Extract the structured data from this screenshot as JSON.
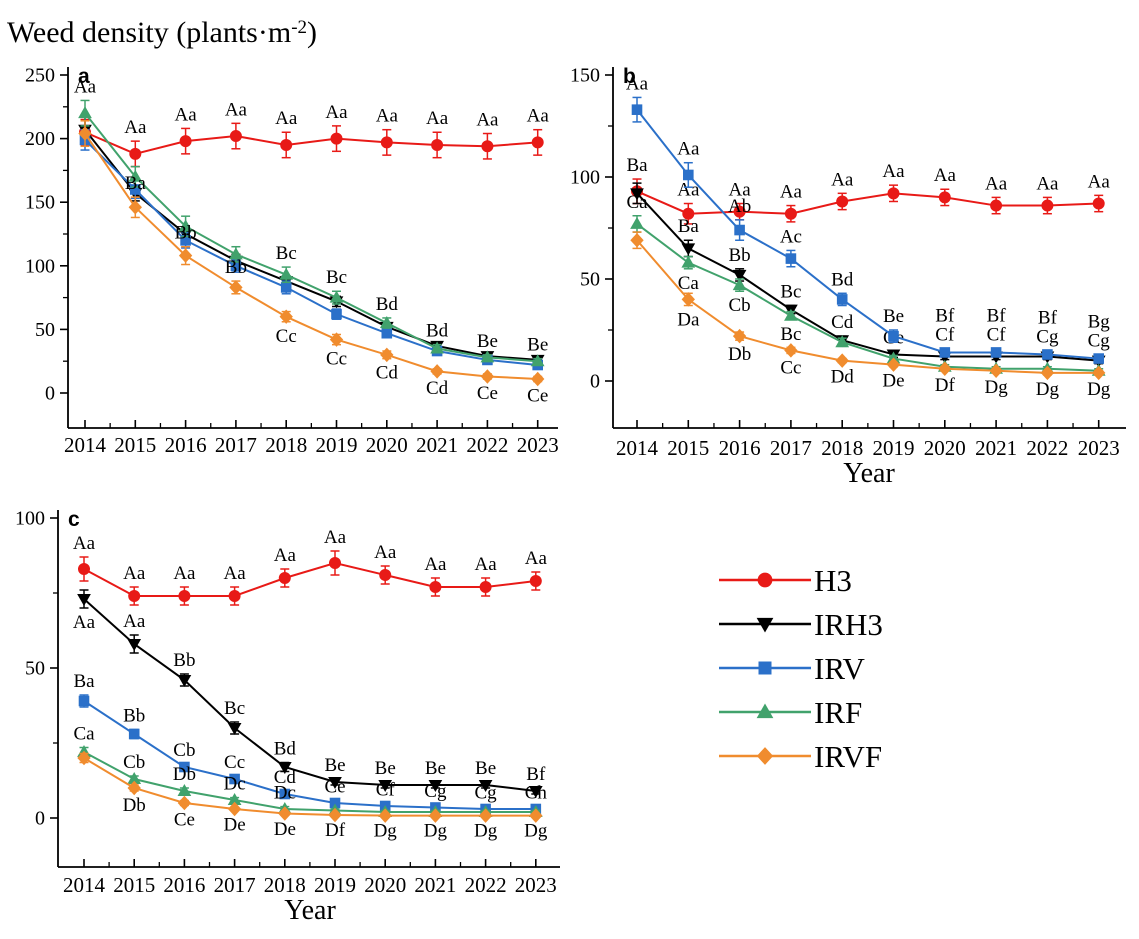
{
  "title": {
    "main": "Weed density (plants·m",
    "sup": "-2",
    "close": ")"
  },
  "years": [
    "2014",
    "2015",
    "2016",
    "2017",
    "2018",
    "2019",
    "2020",
    "2021",
    "2022",
    "2023"
  ],
  "colors": {
    "H3": "#e81a17",
    "IRH3": "#000000",
    "IRV": "#2b70c9",
    "IRF": "#41a26c",
    "IRVF": "#f08c2e"
  },
  "legend": {
    "items": [
      {
        "label": "H3",
        "color": "#e81a17",
        "marker": "circle"
      },
      {
        "label": "IRH3",
        "color": "#000000",
        "marker": "triangle-down"
      },
      {
        "label": "IRV",
        "color": "#2b70c9",
        "marker": "square"
      },
      {
        "label": "IRF",
        "color": "#41a26c",
        "marker": "triangle-up"
      },
      {
        "label": "IRVF",
        "color": "#f08c2e",
        "marker": "diamond"
      }
    ]
  },
  "chart_data": [
    {
      "type": "line",
      "panel_label": "a",
      "xlabel": "",
      "ylabel": "Weed density (plants·m-2)",
      "categories": [
        "2014",
        "2015",
        "2016",
        "2017",
        "2018",
        "2019",
        "2020",
        "2021",
        "2022",
        "2023"
      ],
      "ylim": [
        0,
        250
      ],
      "yticks": [
        0,
        50,
        100,
        150,
        200,
        250
      ],
      "series": [
        {
          "name": "H3",
          "color": "#e81a17",
          "marker": "circle",
          "values": [
            205,
            188,
            198,
            202,
            195,
            200,
            197,
            195,
            194,
            197
          ],
          "err": [
            10,
            10,
            10,
            10,
            10,
            10,
            10,
            10,
            10,
            10
          ],
          "labels_above": [
            "",
            "Aa",
            "Aa",
            "Aa",
            "Aa",
            "Aa",
            "Aa",
            "Aa",
            "Aa",
            "Aa"
          ],
          "labels_below": [
            "",
            "",
            "",
            "",
            "",
            "",
            "",
            "",
            "",
            ""
          ]
        },
        {
          "name": "IRH3",
          "color": "#000000",
          "marker": "triangle-down",
          "values": [
            207,
            157,
            125,
            104,
            88,
            72,
            52,
            37,
            29,
            26
          ],
          "err": [
            10,
            6,
            5,
            5,
            4,
            4,
            3,
            3,
            2,
            2
          ],
          "labels_above": [
            "",
            "",
            "",
            "",
            "",
            "",
            "",
            "",
            "",
            ""
          ],
          "labels_below": [
            "",
            "",
            "",
            "",
            "",
            "",
            "",
            "",
            "",
            ""
          ]
        },
        {
          "name": "IRV",
          "color": "#2b70c9",
          "marker": "square",
          "values": [
            199,
            160,
            120,
            100,
            83,
            62,
            47,
            33,
            26,
            22
          ],
          "err": [
            8,
            7,
            6,
            5,
            5,
            4,
            3,
            3,
            2,
            2
          ],
          "labels_above": [
            "",
            "",
            "",
            "",
            "",
            "",
            "",
            "",
            "",
            ""
          ],
          "labels_below": [
            "",
            "",
            "",
            "",
            "",
            "",
            "",
            "",
            "",
            ""
          ]
        },
        {
          "name": "IRF",
          "color": "#41a26c",
          "marker": "triangle-up",
          "values": [
            220,
            170,
            131,
            109,
            93,
            75,
            55,
            35,
            28,
            25
          ],
          "err": [
            10,
            8,
            8,
            6,
            6,
            5,
            4,
            3,
            2,
            2
          ],
          "labels_above": [
            "Aa",
            "",
            "",
            "",
            "Bc",
            "Bc",
            "Bd",
            "Bd",
            "Be",
            "Be"
          ],
          "labels_below": [
            "",
            "",
            "",
            "",
            "",
            "",
            "",
            "",
            "",
            ""
          ]
        },
        {
          "name": "IRVF",
          "color": "#f08c2e",
          "marker": "diamond",
          "values": [
            204,
            146,
            108,
            83,
            60,
            42,
            30,
            17,
            13,
            11
          ],
          "err": [
            10,
            8,
            7,
            5,
            4,
            4,
            3,
            2,
            2,
            2
          ],
          "labels_above": [
            "",
            "Ba",
            "Bb",
            "Bb",
            "",
            "",
            "",
            "",
            "",
            ""
          ],
          "labels_below": [
            "",
            "",
            "",
            "",
            "Cc",
            "Cc",
            "Cd",
            "Cd",
            "Ce",
            "Ce"
          ]
        }
      ]
    },
    {
      "type": "line",
      "panel_label": "b",
      "xlabel": "Year",
      "categories": [
        "2014",
        "2015",
        "2016",
        "2017",
        "2018",
        "2019",
        "2020",
        "2021",
        "2022",
        "2023"
      ],
      "ylim": [
        0,
        150
      ],
      "yticks": [
        0,
        50,
        100,
        150
      ],
      "series": [
        {
          "name": "H3",
          "color": "#e81a17",
          "marker": "circle",
          "values": [
            93,
            82,
            83,
            82,
            88,
            92,
            90,
            86,
            86,
            87
          ],
          "err": [
            6,
            5,
            4,
            4,
            4,
            4,
            4,
            4,
            4,
            4
          ],
          "labels_above": [
            "Ba",
            "Aa",
            "Aa",
            "Aa",
            "Aa",
            "Aa",
            "Aa",
            "Aa",
            "Aa",
            "Aa"
          ],
          "labels_below": [
            "",
            "",
            "",
            "",
            "",
            "",
            "",
            "",
            "",
            ""
          ]
        },
        {
          "name": "IRH3",
          "color": "#000000",
          "marker": "triangle-down",
          "values": [
            92,
            65,
            52,
            35,
            20,
            13,
            12,
            12,
            12,
            10
          ],
          "err": [
            5,
            4,
            3,
            2,
            2,
            1.5,
            1.5,
            1.5,
            1.5,
            1.5
          ],
          "labels_above": [
            "",
            "Ba",
            "Bb",
            "Bc",
            "Cd",
            "Ce",
            "",
            "",
            "",
            ""
          ],
          "labels_below": [
            "",
            "",
            "",
            "",
            "",
            "",
            "",
            "",
            "",
            ""
          ]
        },
        {
          "name": "IRV",
          "color": "#2b70c9",
          "marker": "square",
          "values": [
            133,
            101,
            74,
            60,
            40,
            22,
            14,
            14,
            13,
            11
          ],
          "err": [
            6,
            6,
            5,
            4,
            3,
            3,
            2,
            2,
            2,
            2
          ],
          "labels_above": [
            "Aa",
            "Aa",
            "Ab",
            "Ac",
            "Bd",
            "Be",
            "Bf|Cf",
            "Bf|Cf",
            "Bf|Cg",
            "Bg|Cg"
          ],
          "labels_below": [
            "",
            "",
            "",
            "",
            "",
            "",
            "",
            "",
            "",
            ""
          ]
        },
        {
          "name": "IRF",
          "color": "#41a26c",
          "marker": "triangle-up",
          "values": [
            77,
            58,
            47,
            32,
            19,
            11,
            7,
            6,
            6,
            5
          ],
          "err": [
            4,
            3,
            3,
            2,
            2,
            1.5,
            1,
            1,
            1,
            1
          ],
          "labels_above": [
            "Ca",
            "",
            "",
            "",
            "",
            "",
            "",
            "",
            "",
            ""
          ],
          "labels_below": [
            "",
            "Ca",
            "Cb",
            "Bc",
            "",
            "",
            "",
            "",
            "",
            ""
          ]
        },
        {
          "name": "IRVF",
          "color": "#f08c2e",
          "marker": "diamond",
          "values": [
            69,
            40,
            22,
            15,
            10,
            8,
            6,
            5,
            4,
            4
          ],
          "err": [
            4,
            3,
            2,
            1.5,
            1,
            1,
            1,
            1,
            1,
            1
          ],
          "labels_above": [
            "",
            "",
            "",
            "",
            "",
            "",
            "",
            "",
            "",
            ""
          ],
          "labels_below": [
            "",
            "Da",
            "Db",
            "Cc",
            "Dd",
            "De",
            "Df",
            "Dg",
            "Dg",
            "Dg"
          ]
        }
      ]
    },
    {
      "type": "line",
      "panel_label": "c",
      "xlabel": "Year",
      "categories": [
        "2014",
        "2015",
        "2016",
        "2017",
        "2018",
        "2019",
        "2020",
        "2021",
        "2022",
        "2023"
      ],
      "ylim": [
        0,
        100
      ],
      "yticks": [
        0,
        50,
        100
      ],
      "series": [
        {
          "name": "H3",
          "color": "#e81a17",
          "marker": "circle",
          "values": [
            83,
            74,
            74,
            74,
            80,
            85,
            81,
            77,
            77,
            79
          ],
          "err": [
            4,
            3,
            3,
            3,
            3,
            4,
            3,
            3,
            3,
            3
          ],
          "labels_above": [
            "Aa",
            "Aa",
            "Aa",
            "Aa",
            "Aa",
            "Aa",
            "Aa",
            "Aa",
            "Aa",
            "Aa"
          ],
          "labels_below": [
            "",
            "",
            "",
            "",
            "",
            "",
            "",
            "",
            "",
            ""
          ]
        },
        {
          "name": "IRH3",
          "color": "#000000",
          "marker": "triangle-down",
          "values": [
            73,
            58,
            46,
            30,
            17,
            12,
            11,
            11,
            11,
            9
          ],
          "err": [
            3,
            3,
            2,
            2,
            1.5,
            1,
            1,
            1,
            1,
            1
          ],
          "labels_above": [
            "",
            "Aa",
            "Bb",
            "Bc",
            "Bd",
            "Be",
            "Be",
            "Be",
            "Be",
            "Bf"
          ],
          "labels_below": [
            "Aa",
            "",
            "",
            "",
            "",
            "",
            "",
            "",
            "",
            ""
          ]
        },
        {
          "name": "IRV",
          "color": "#2b70c9",
          "marker": "square",
          "values": [
            39,
            28,
            17,
            13,
            8,
            5,
            4,
            3.5,
            3,
            3
          ],
          "err": [
            2,
            1.5,
            1,
            1,
            1,
            0.8,
            0.8,
            0.8,
            0.8,
            0.8
          ],
          "labels_above": [
            "Ba",
            "Bb",
            "Cb",
            "Cc",
            "Cd",
            "Ce",
            "Cf",
            "Cg",
            "Cg",
            "Ch"
          ],
          "labels_below": [
            "",
            "",
            "",
            "",
            "",
            "",
            "",
            "",
            "",
            ""
          ]
        },
        {
          "name": "IRF",
          "color": "#41a26c",
          "marker": "triangle-up",
          "values": [
            22,
            13,
            9,
            6,
            3,
            2.5,
            2,
            2,
            2,
            2
          ],
          "err": [
            1.5,
            1,
            1,
            0.8,
            0.8,
            0.5,
            0.5,
            0.5,
            0.5,
            0.5
          ],
          "labels_above": [
            "Ca",
            "Cb",
            "Db",
            "Dc",
            "Dc",
            "",
            "",
            "",
            "",
            ""
          ],
          "labels_below": [
            "",
            "",
            "",
            "",
            "",
            "",
            "",
            "",
            "",
            ""
          ]
        },
        {
          "name": "IRVF",
          "color": "#f08c2e",
          "marker": "diamond",
          "values": [
            20,
            10,
            5,
            3,
            1.5,
            1,
            0.8,
            0.8,
            0.8,
            0.8
          ],
          "err": [
            1.5,
            1,
            0.8,
            0.5,
            0.5,
            0.3,
            0.3,
            0.3,
            0.3,
            0.3
          ],
          "labels_above": [
            "",
            "",
            "",
            "",
            "",
            "",
            "",
            "",
            "",
            ""
          ],
          "labels_below": [
            "",
            "Db",
            "Ce",
            "De",
            "De",
            "Df",
            "Dg",
            "Dg",
            "Dg",
            "Dg"
          ]
        }
      ]
    }
  ]
}
